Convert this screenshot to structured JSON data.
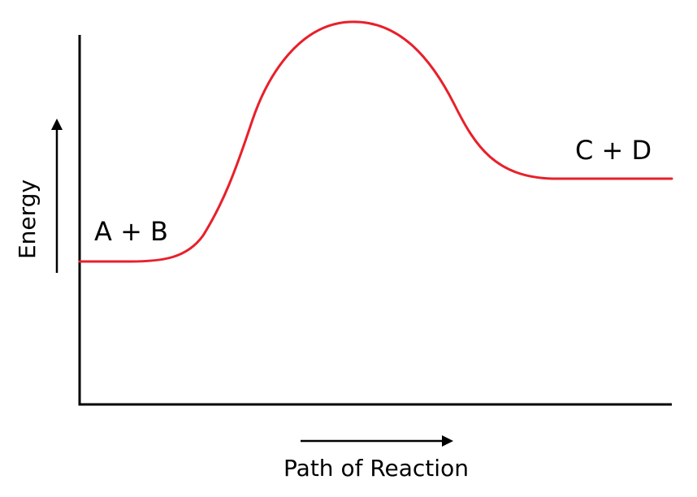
{
  "diagram": {
    "ylabel": "Energy",
    "xlabel": "Path of Reaction",
    "reactants_label": "A + B",
    "products_label": "C + D",
    "curve_color": "#e8202a",
    "axis_color": "#000000"
  }
}
